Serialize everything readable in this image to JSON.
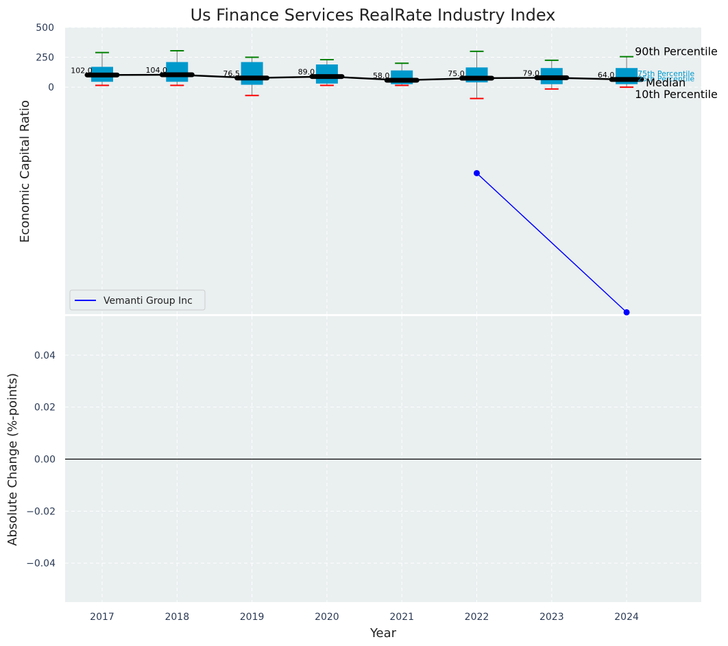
{
  "chart_data": [
    {
      "type": "box",
      "title": "Us Finance Services RealRate Industry Index",
      "ylabel": "Economic Capital Ratio",
      "categories": [
        "2017",
        "2018",
        "2019",
        "2020",
        "2021",
        "2022",
        "2023",
        "2024"
      ],
      "ylim": [
        -1900,
        500
      ],
      "yticks": [
        0,
        250,
        500
      ],
      "grid": true,
      "percentile_labels": {
        "p90": "90th Percentile",
        "p75": "75th Percentile",
        "median": "Median",
        "p25": "25th Percentile",
        "p10": "10th Percentile"
      },
      "industry": {
        "p10": [
          15,
          15,
          -70,
          15,
          15,
          -95,
          -15,
          0
        ],
        "p25": [
          45,
          45,
          20,
          30,
          25,
          40,
          25,
          25
        ],
        "median": [
          102,
          104,
          76.5,
          89,
          58,
          75,
          79,
          64
        ],
        "p75": [
          170,
          210,
          210,
          190,
          140,
          165,
          160,
          160
        ],
        "p90": [
          290,
          305,
          250,
          230,
          200,
          300,
          225,
          255
        ]
      },
      "median_labels": [
        "102.0",
        "104.0",
        "76.5",
        "89.0",
        "58.0",
        "75.0",
        "79.0",
        "64.0"
      ],
      "series": [
        {
          "name": "Vemanti Group Inc",
          "x": [
            "2022",
            "2024"
          ],
          "values": [
            -720,
            -1885
          ]
        }
      ],
      "legend": "lower-left",
      "colors": {
        "box": "#0099cc",
        "median_line": "#000000",
        "p90_cap": "#008000",
        "p10_cap": "#ff0000",
        "series": "#0000ff",
        "panel_bg": "#eaeff0"
      }
    },
    {
      "type": "line",
      "xlabel": "Year",
      "ylabel": "Absolute Change (%-points)",
      "categories": [
        "2017",
        "2018",
        "2019",
        "2020",
        "2021",
        "2022",
        "2023",
        "2024"
      ],
      "ylim": [
        -0.055,
        0.055
      ],
      "yticks": [
        -0.04,
        -0.02,
        0.0,
        0.02,
        0.04
      ],
      "ytick_labels": [
        "−0.04",
        "−0.02",
        "0.00",
        "0.02",
        "0.04"
      ],
      "reference_line": 0,
      "grid": true,
      "series": []
    }
  ]
}
